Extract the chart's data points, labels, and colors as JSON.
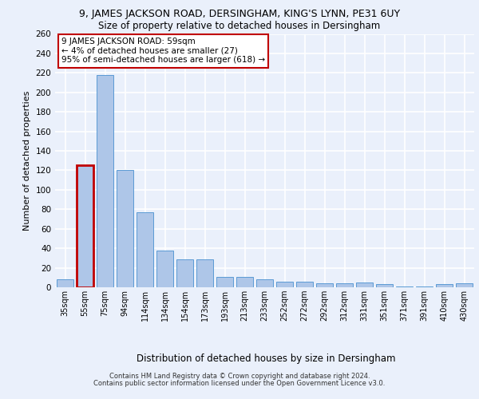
{
  "title_line1": "9, JAMES JACKSON ROAD, DERSINGHAM, KING'S LYNN, PE31 6UY",
  "title_line2": "Size of property relative to detached houses in Dersingham",
  "xlabel": "Distribution of detached houses by size in Dersingham",
  "ylabel": "Number of detached properties",
  "categories": [
    "35sqm",
    "55sqm",
    "75sqm",
    "94sqm",
    "114sqm",
    "134sqm",
    "154sqm",
    "173sqm",
    "193sqm",
    "213sqm",
    "233sqm",
    "252sqm",
    "272sqm",
    "292sqm",
    "312sqm",
    "331sqm",
    "351sqm",
    "371sqm",
    "391sqm",
    "410sqm",
    "430sqm"
  ],
  "values": [
    8,
    125,
    218,
    120,
    77,
    38,
    29,
    29,
    11,
    11,
    8,
    6,
    6,
    4,
    4,
    5,
    3,
    1,
    1,
    3,
    4
  ],
  "bar_color": "#aec6e8",
  "bar_edge_color": "#5b9bd5",
  "highlight_bar_index": 1,
  "highlight_edge_color": "#c00000",
  "annotation_text": "9 JAMES JACKSON ROAD: 59sqm\n← 4% of detached houses are smaller (27)\n95% of semi-detached houses are larger (618) →",
  "annotation_box_color": "white",
  "annotation_box_edge_color": "#c00000",
  "ylim": [
    0,
    260
  ],
  "yticks": [
    0,
    20,
    40,
    60,
    80,
    100,
    120,
    140,
    160,
    180,
    200,
    220,
    240,
    260
  ],
  "bg_color": "#eaf0fb",
  "plot_bg_color": "#eaf0fb",
  "grid_color": "white",
  "footer_line1": "Contains HM Land Registry data © Crown copyright and database right 2024.",
  "footer_line2": "Contains public sector information licensed under the Open Government Licence v3.0."
}
